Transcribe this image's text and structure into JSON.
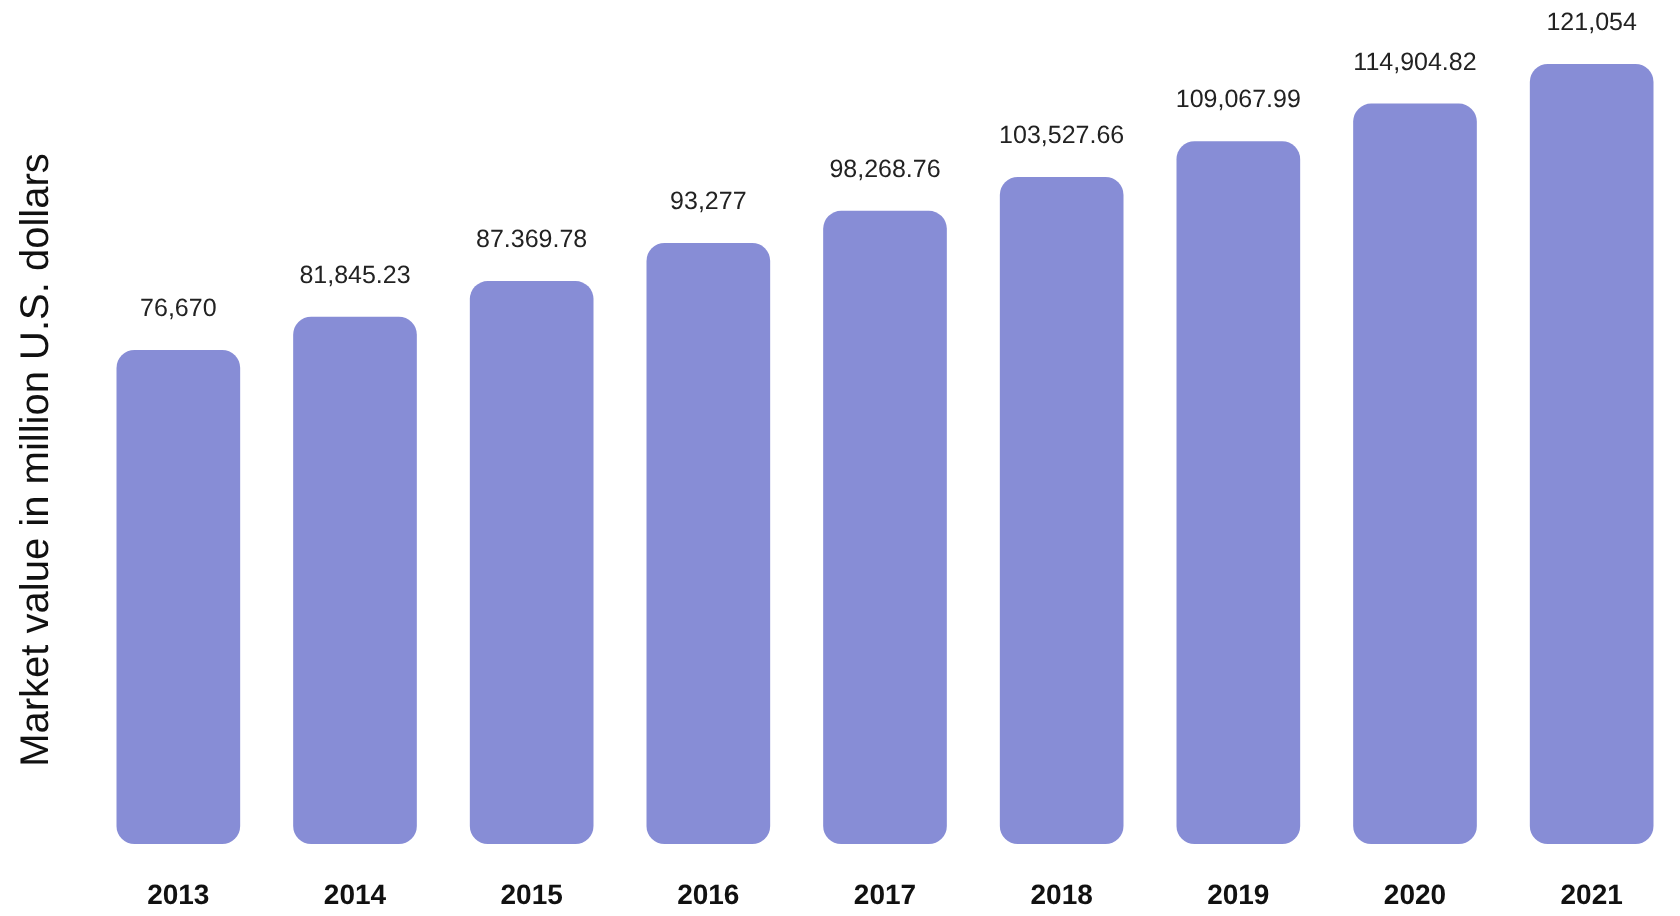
{
  "chart_data": {
    "type": "bar",
    "ylabel": "Market value in million U.S. dollars",
    "categories": [
      "2013",
      "2014",
      "2015",
      "2016",
      "2017",
      "2018",
      "2019",
      "2020",
      "2021"
    ],
    "values": [
      76670,
      81845.23,
      87369.78,
      93277,
      98268.76,
      103527.66,
      109067.99,
      114904.82,
      121054
    ],
    "value_labels": [
      "76,670",
      "81,845.23",
      "87.369.78",
      "93,277",
      "98,268.76",
      "103,527.66",
      "109,067.99",
      "114,904.82",
      "121,054"
    ],
    "color": "#878dd6",
    "tick_labels": "x"
  }
}
